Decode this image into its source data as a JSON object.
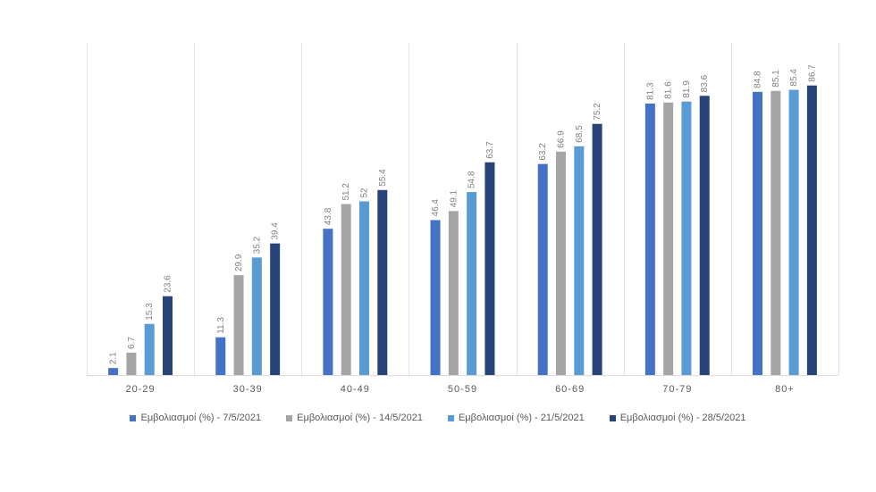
{
  "chart_data": {
    "type": "bar",
    "categories": [
      "20-29",
      "30-39",
      "40-49",
      "50-59",
      "60-69",
      "70-79",
      "80+"
    ],
    "series": [
      {
        "name": "Εμβολιασμοί (%) - 7/5/2021",
        "color": "#4472c4",
        "values": [
          2.1,
          11.3,
          43.8,
          46.4,
          63.2,
          81.3,
          84.8
        ]
      },
      {
        "name": "Εμβολιασμοί (%) - 14/5/2021",
        "color": "#a5a5a5",
        "values": [
          6.7,
          29.9,
          51.2,
          49.1,
          66.9,
          81.6,
          85.1
        ]
      },
      {
        "name": "Εμβολιασμοί (%) - 21/5/2021",
        "color": "#5b9bd5",
        "values": [
          15.3,
          35.2,
          52,
          54.8,
          68.5,
          81.9,
          85.4
        ]
      },
      {
        "name": "Εμβολιασμοί (%) - 28/5/2021",
        "color": "#264478",
        "values": [
          23.6,
          39.4,
          55.4,
          63.7,
          75.2,
          83.6,
          86.7
        ]
      }
    ],
    "ylim": [
      0,
      100
    ],
    "grid": "vertical category separators",
    "legend_position": "bottom"
  }
}
